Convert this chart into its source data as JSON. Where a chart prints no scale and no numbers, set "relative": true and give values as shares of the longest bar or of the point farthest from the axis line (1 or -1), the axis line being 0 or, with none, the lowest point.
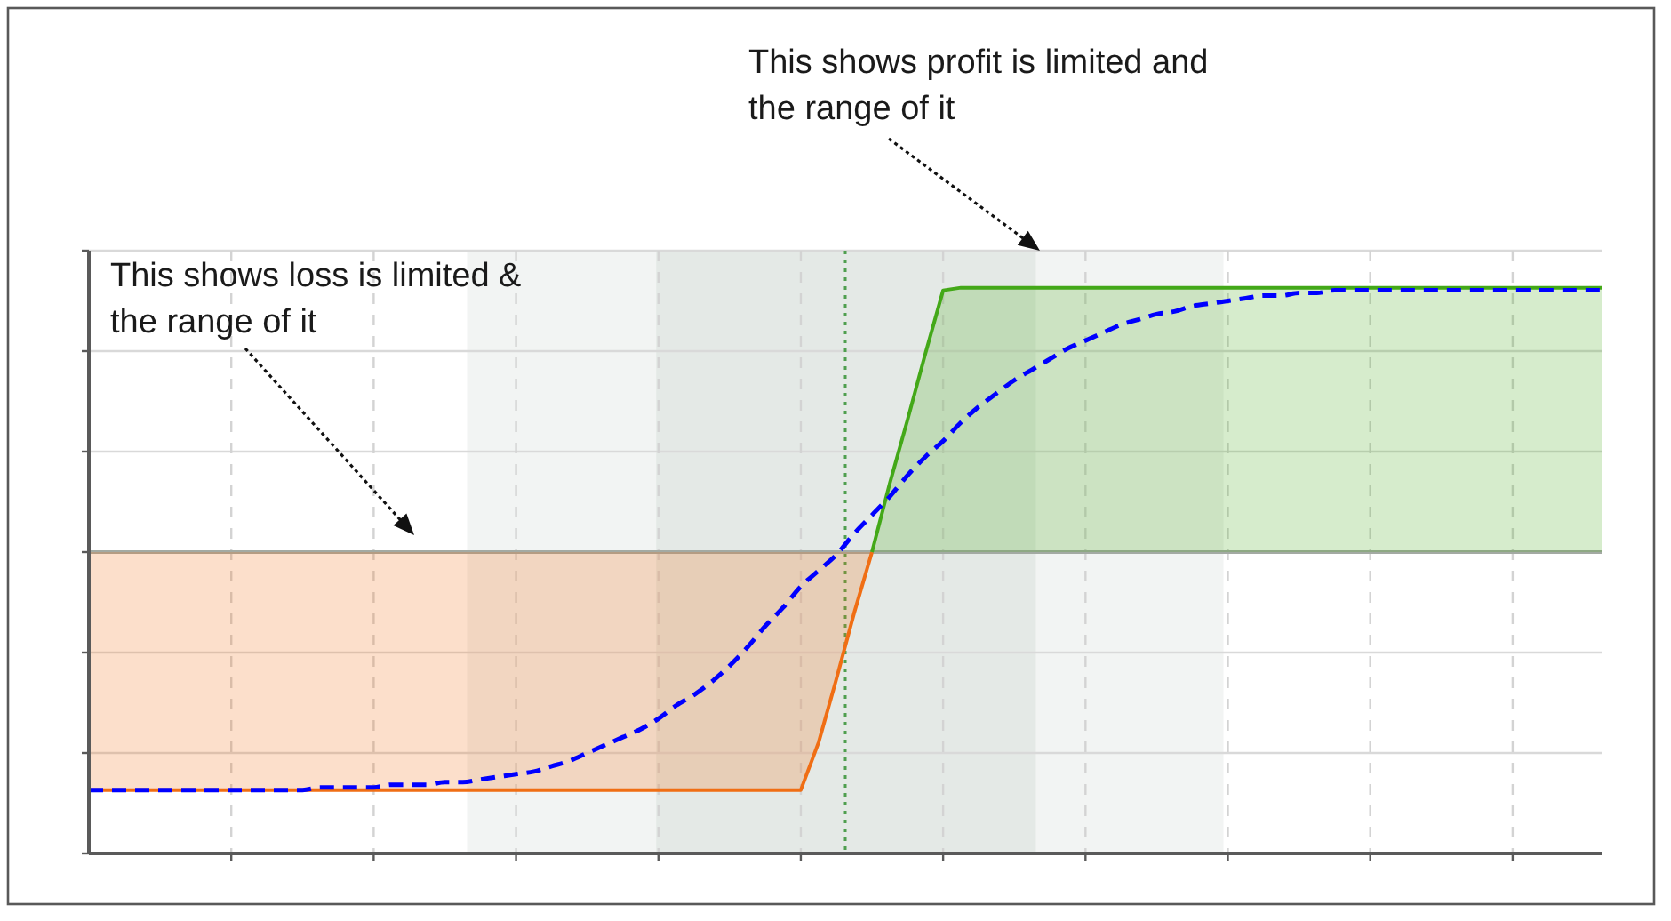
{
  "chart_data": {
    "type": "area",
    "relative": true,
    "grid": true,
    "categories": [
      null,
      null,
      null,
      null,
      null,
      null,
      null,
      null,
      null,
      null,
      null,
      null,
      null,
      null,
      null,
      null,
      null,
      null,
      null,
      null,
      null,
      null,
      null,
      null,
      null,
      null,
      null,
      null,
      null,
      null,
      null,
      null,
      null,
      null,
      null,
      null,
      null,
      null,
      null,
      null,
      null,
      null,
      null,
      null,
      null,
      null,
      null,
      null,
      null,
      null,
      null,
      null,
      null,
      null,
      null,
      null,
      null,
      null,
      null,
      null,
      null,
      null,
      null,
      null,
      null,
      null,
      null,
      null,
      null,
      null,
      null,
      null,
      null,
      null,
      null,
      null,
      null,
      null,
      null,
      null,
      null,
      null,
      null,
      null,
      null,
      null
    ],
    "series": [
      {
        "color": "#f06e14",
        "values": [
          -0.9,
          -0.9,
          -0.9,
          -0.9,
          -0.9,
          -0.9,
          -0.9,
          -0.9,
          -0.9,
          -0.9,
          -0.9,
          -0.9,
          -0.9,
          -0.9,
          -0.9,
          -0.9,
          -0.9,
          -0.9,
          -0.9,
          -0.9,
          -0.9,
          -0.9,
          -0.9,
          -0.9,
          -0.9,
          -0.9,
          -0.9,
          -0.9,
          -0.9,
          -0.9,
          -0.9,
          -0.9,
          -0.9,
          -0.9,
          -0.9,
          -0.9,
          -0.9,
          -0.9,
          -0.9,
          -0.9,
          -0.9,
          -0.72,
          -0.48,
          -0.23,
          0,
          null,
          null,
          null,
          null,
          null,
          null,
          null,
          null,
          null,
          null,
          null,
          null,
          null,
          null,
          null,
          null,
          null,
          null,
          null,
          null,
          null,
          null,
          null,
          null,
          null,
          null,
          null,
          null,
          null,
          null,
          null,
          null,
          null,
          null,
          null,
          null,
          null,
          null,
          null,
          null,
          null
        ]
      },
      {
        "color": "#43a818",
        "values": [
          null,
          null,
          null,
          null,
          null,
          null,
          null,
          null,
          null,
          null,
          null,
          null,
          null,
          null,
          null,
          null,
          null,
          null,
          null,
          null,
          null,
          null,
          null,
          null,
          null,
          null,
          null,
          null,
          null,
          null,
          null,
          null,
          null,
          null,
          null,
          null,
          null,
          null,
          null,
          null,
          null,
          null,
          null,
          null,
          0,
          0.26,
          0.5,
          0.75,
          0.99,
          1,
          1,
          1,
          1,
          1,
          1,
          1,
          1,
          1,
          1,
          1,
          1,
          1,
          1,
          1,
          1,
          1,
          1,
          1,
          1,
          1,
          1,
          1,
          1,
          1,
          1,
          1,
          1,
          1,
          1,
          1,
          1,
          1,
          1,
          1,
          1,
          1
        ]
      },
      {
        "type": "line",
        "color": "#0000ff",
        "line_style": "dashed",
        "values": [
          -0.9,
          -0.9,
          -0.9,
          -0.9,
          -0.9,
          -0.9,
          -0.9,
          -0.9,
          -0.9,
          -0.9,
          -0.9,
          -0.9,
          -0.9,
          -0.89,
          -0.89,
          -0.89,
          -0.89,
          -0.88,
          -0.88,
          -0.88,
          -0.87,
          -0.87,
          -0.86,
          -0.85,
          -0.84,
          -0.83,
          -0.81,
          -0.79,
          -0.76,
          -0.73,
          -0.7,
          -0.67,
          -0.63,
          -0.58,
          -0.54,
          -0.49,
          -0.43,
          -0.36,
          -0.28,
          -0.21,
          -0.13,
          -0.07,
          -0.01,
          0.07,
          0.14,
          0.21,
          0.29,
          0.36,
          0.42,
          0.49,
          0.55,
          0.6,
          0.65,
          0.69,
          0.73,
          0.77,
          0.8,
          0.83,
          0.86,
          0.88,
          0.9,
          0.91,
          0.93,
          0.94,
          0.95,
          0.96,
          0.97,
          0.97,
          0.98,
          0.98,
          0.99,
          0.99,
          0.99,
          0.99,
          0.99,
          0.99,
          0.99,
          0.99,
          0.99,
          0.99,
          0.99,
          0.99,
          0.99,
          0.99,
          0.99,
          0.99
        ]
      }
    ],
    "ref_lines": [
      {
        "axis": "y",
        "value": 0,
        "color": "#a3aaa3"
      }
    ],
    "annotations": [
      "This shows profit is limited and the range of it",
      "This shows loss is limited & the range of it"
    ]
  }
}
